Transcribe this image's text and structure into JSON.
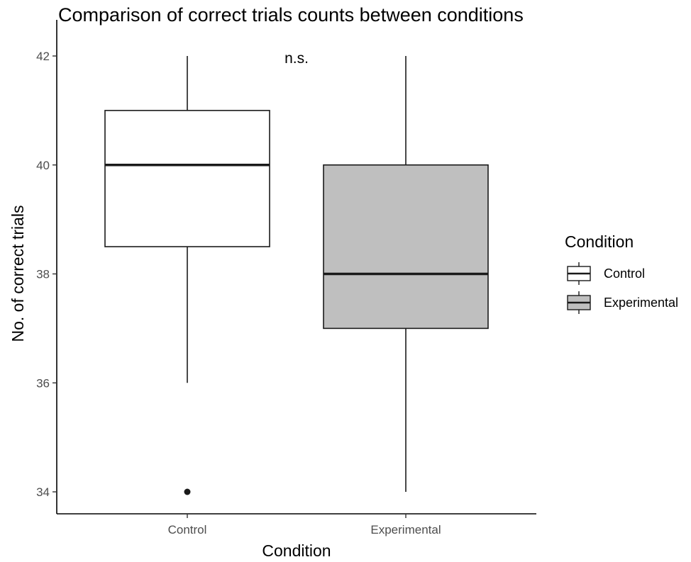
{
  "chart_data": {
    "type": "boxplot",
    "title": "Comparison of correct trials counts between conditions",
    "xlabel": "Condition",
    "ylabel": "No. of correct trials",
    "ylim": [
      33.6,
      42.4
    ],
    "yticks": [
      34,
      36,
      38,
      40,
      42
    ],
    "categories": [
      "Control",
      "Experimental"
    ],
    "boxes": [
      {
        "name": "Control",
        "min": 36,
        "q1": 38.5,
        "median": 40,
        "q3": 41,
        "max": 42,
        "outliers": [
          34
        ],
        "color": "#ffffff"
      },
      {
        "name": "Experimental",
        "min": 34,
        "q1": 37,
        "median": 38,
        "q3": 40,
        "max": 42,
        "outliers": [],
        "color": "#bfbfbf"
      }
    ],
    "annotation": "n.s.",
    "legend": {
      "title": "Condition",
      "placement": "right",
      "items": [
        {
          "label": "Control",
          "color": "#ffffff"
        },
        {
          "label": "Experimental",
          "color": "#bfbfbf"
        }
      ]
    },
    "grid": false
  }
}
